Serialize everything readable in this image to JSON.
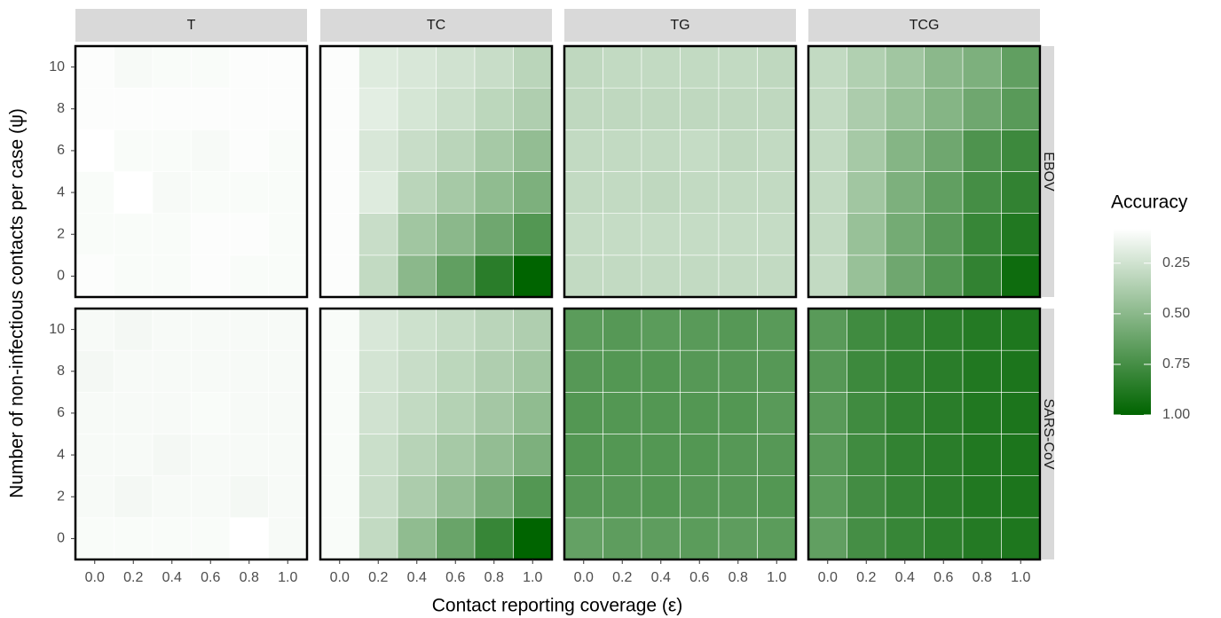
{
  "chart_data": {
    "type": "heatmap",
    "x_label": "Contact reporting coverage (ε)",
    "y_label": "Number of non-infectious contacts per case (ψ)",
    "columns": [
      "T",
      "TC",
      "TG",
      "TCG"
    ],
    "rows": [
      "EBOV",
      "SARS-CoV"
    ],
    "x": [
      0,
      0.2,
      0.4,
      0.6,
      0.8,
      1
    ],
    "y": [
      0,
      2,
      4,
      6,
      8,
      10
    ],
    "xlim": [
      -0.1,
      1.1
    ],
    "ylim": [
      -1,
      11
    ],
    "xticks": [
      {
        "value": 0,
        "label": "0.0"
      },
      0.2,
      0.4,
      0.6,
      0.8,
      {
        "value": 1,
        "label": "1.0"
      }
    ],
    "yticks": [
      0,
      2,
      4,
      6,
      8,
      10
    ],
    "values": [
      [
        [
          [
            0.09,
            0.1,
            0.1,
            0.09,
            0.1,
            0.1
          ],
          [
            0.1,
            0.1,
            0.1,
            0.09,
            0.09,
            0.1
          ],
          [
            0.1,
            0.08,
            0.11,
            0.1,
            0.1,
            0.1
          ],
          [
            0.08,
            0.1,
            0.1,
            0.11,
            0.09,
            0.1
          ],
          [
            0.09,
            0.09,
            0.09,
            0.09,
            0.09,
            0.09
          ],
          [
            0.09,
            0.11,
            0.1,
            0.1,
            0.09,
            0.09
          ]
        ],
        [
          [
            0.09,
            0.3,
            0.5,
            0.65,
            0.85,
            1.0
          ],
          [
            0.09,
            0.28,
            0.42,
            0.5,
            0.6,
            0.7
          ],
          [
            0.09,
            0.2,
            0.33,
            0.4,
            0.48,
            0.55
          ],
          [
            0.09,
            0.22,
            0.28,
            0.33,
            0.4,
            0.47
          ],
          [
            0.09,
            0.18,
            0.23,
            0.27,
            0.32,
            0.37
          ],
          [
            0.09,
            0.2,
            0.22,
            0.25,
            0.28,
            0.33
          ]
        ],
        [
          [
            0.3,
            0.3,
            0.3,
            0.3,
            0.3,
            0.3
          ],
          [
            0.29,
            0.29,
            0.29,
            0.29,
            0.29,
            0.29
          ],
          [
            0.3,
            0.3,
            0.31,
            0.3,
            0.3,
            0.3
          ],
          [
            0.3,
            0.3,
            0.3,
            0.29,
            0.31,
            0.3
          ],
          [
            0.31,
            0.31,
            0.31,
            0.31,
            0.31,
            0.31
          ],
          [
            0.31,
            0.3,
            0.3,
            0.3,
            0.3,
            0.31
          ]
        ],
        [
          [
            0.3,
            0.45,
            0.6,
            0.7,
            0.82,
            0.95
          ],
          [
            0.3,
            0.45,
            0.58,
            0.68,
            0.8,
            0.88
          ],
          [
            0.3,
            0.42,
            0.55,
            0.65,
            0.75,
            0.82
          ],
          [
            0.3,
            0.4,
            0.52,
            0.6,
            0.72,
            0.78
          ],
          [
            0.3,
            0.38,
            0.45,
            0.52,
            0.6,
            0.68
          ],
          [
            0.3,
            0.36,
            0.42,
            0.5,
            0.55,
            0.65
          ]
        ]
      ],
      [
        [
          [
            0.1,
            0.1,
            0.1,
            0.1,
            0.08,
            0.11
          ],
          [
            0.11,
            0.12,
            0.11,
            0.11,
            0.12,
            0.11
          ],
          [
            0.11,
            0.11,
            0.12,
            0.11,
            0.11,
            0.11
          ],
          [
            0.11,
            0.11,
            0.11,
            0.1,
            0.11,
            0.11
          ],
          [
            0.12,
            0.11,
            0.11,
            0.11,
            0.11,
            0.11
          ],
          [
            0.11,
            0.12,
            0.11,
            0.11,
            0.11,
            0.11
          ]
        ],
        [
          [
            0.1,
            0.3,
            0.48,
            0.62,
            0.8,
            1.0
          ],
          [
            0.1,
            0.28,
            0.38,
            0.47,
            0.57,
            0.7
          ],
          [
            0.1,
            0.27,
            0.34,
            0.4,
            0.47,
            0.55
          ],
          [
            0.1,
            0.25,
            0.3,
            0.35,
            0.41,
            0.48
          ],
          [
            0.1,
            0.24,
            0.28,
            0.32,
            0.37,
            0.42
          ],
          [
            0.1,
            0.22,
            0.26,
            0.29,
            0.33,
            0.37
          ]
        ],
        [
          [
            0.64,
            0.66,
            0.66,
            0.67,
            0.66,
            0.67
          ],
          [
            0.69,
            0.69,
            0.7,
            0.69,
            0.69,
            0.7
          ],
          [
            0.7,
            0.7,
            0.7,
            0.7,
            0.69,
            0.69
          ],
          [
            0.7,
            0.7,
            0.7,
            0.7,
            0.7,
            0.68
          ],
          [
            0.69,
            0.7,
            0.7,
            0.69,
            0.69,
            0.69
          ],
          [
            0.67,
            0.69,
            0.67,
            0.68,
            0.69,
            0.68
          ]
        ],
        [
          [
            0.65,
            0.75,
            0.8,
            0.84,
            0.87,
            0.89
          ],
          [
            0.67,
            0.76,
            0.81,
            0.85,
            0.88,
            0.9
          ],
          [
            0.68,
            0.77,
            0.82,
            0.85,
            0.88,
            0.9
          ],
          [
            0.68,
            0.77,
            0.82,
            0.85,
            0.88,
            0.9
          ],
          [
            0.69,
            0.78,
            0.82,
            0.85,
            0.88,
            0.9
          ],
          [
            0.68,
            0.77,
            0.81,
            0.84,
            0.87,
            0.89
          ]
        ]
      ]
    ],
    "colorbar": {
      "title": "Accuracy",
      "clim": [
        0.08,
        1.0
      ],
      "ticks": [
        0.25,
        {
          "value": 0.5,
          "label": "0.50"
        },
        0.75,
        {
          "value": 1,
          "label": "1.00"
        }
      ],
      "low_color": "#ffffff",
      "high_color": "#006400"
    }
  }
}
